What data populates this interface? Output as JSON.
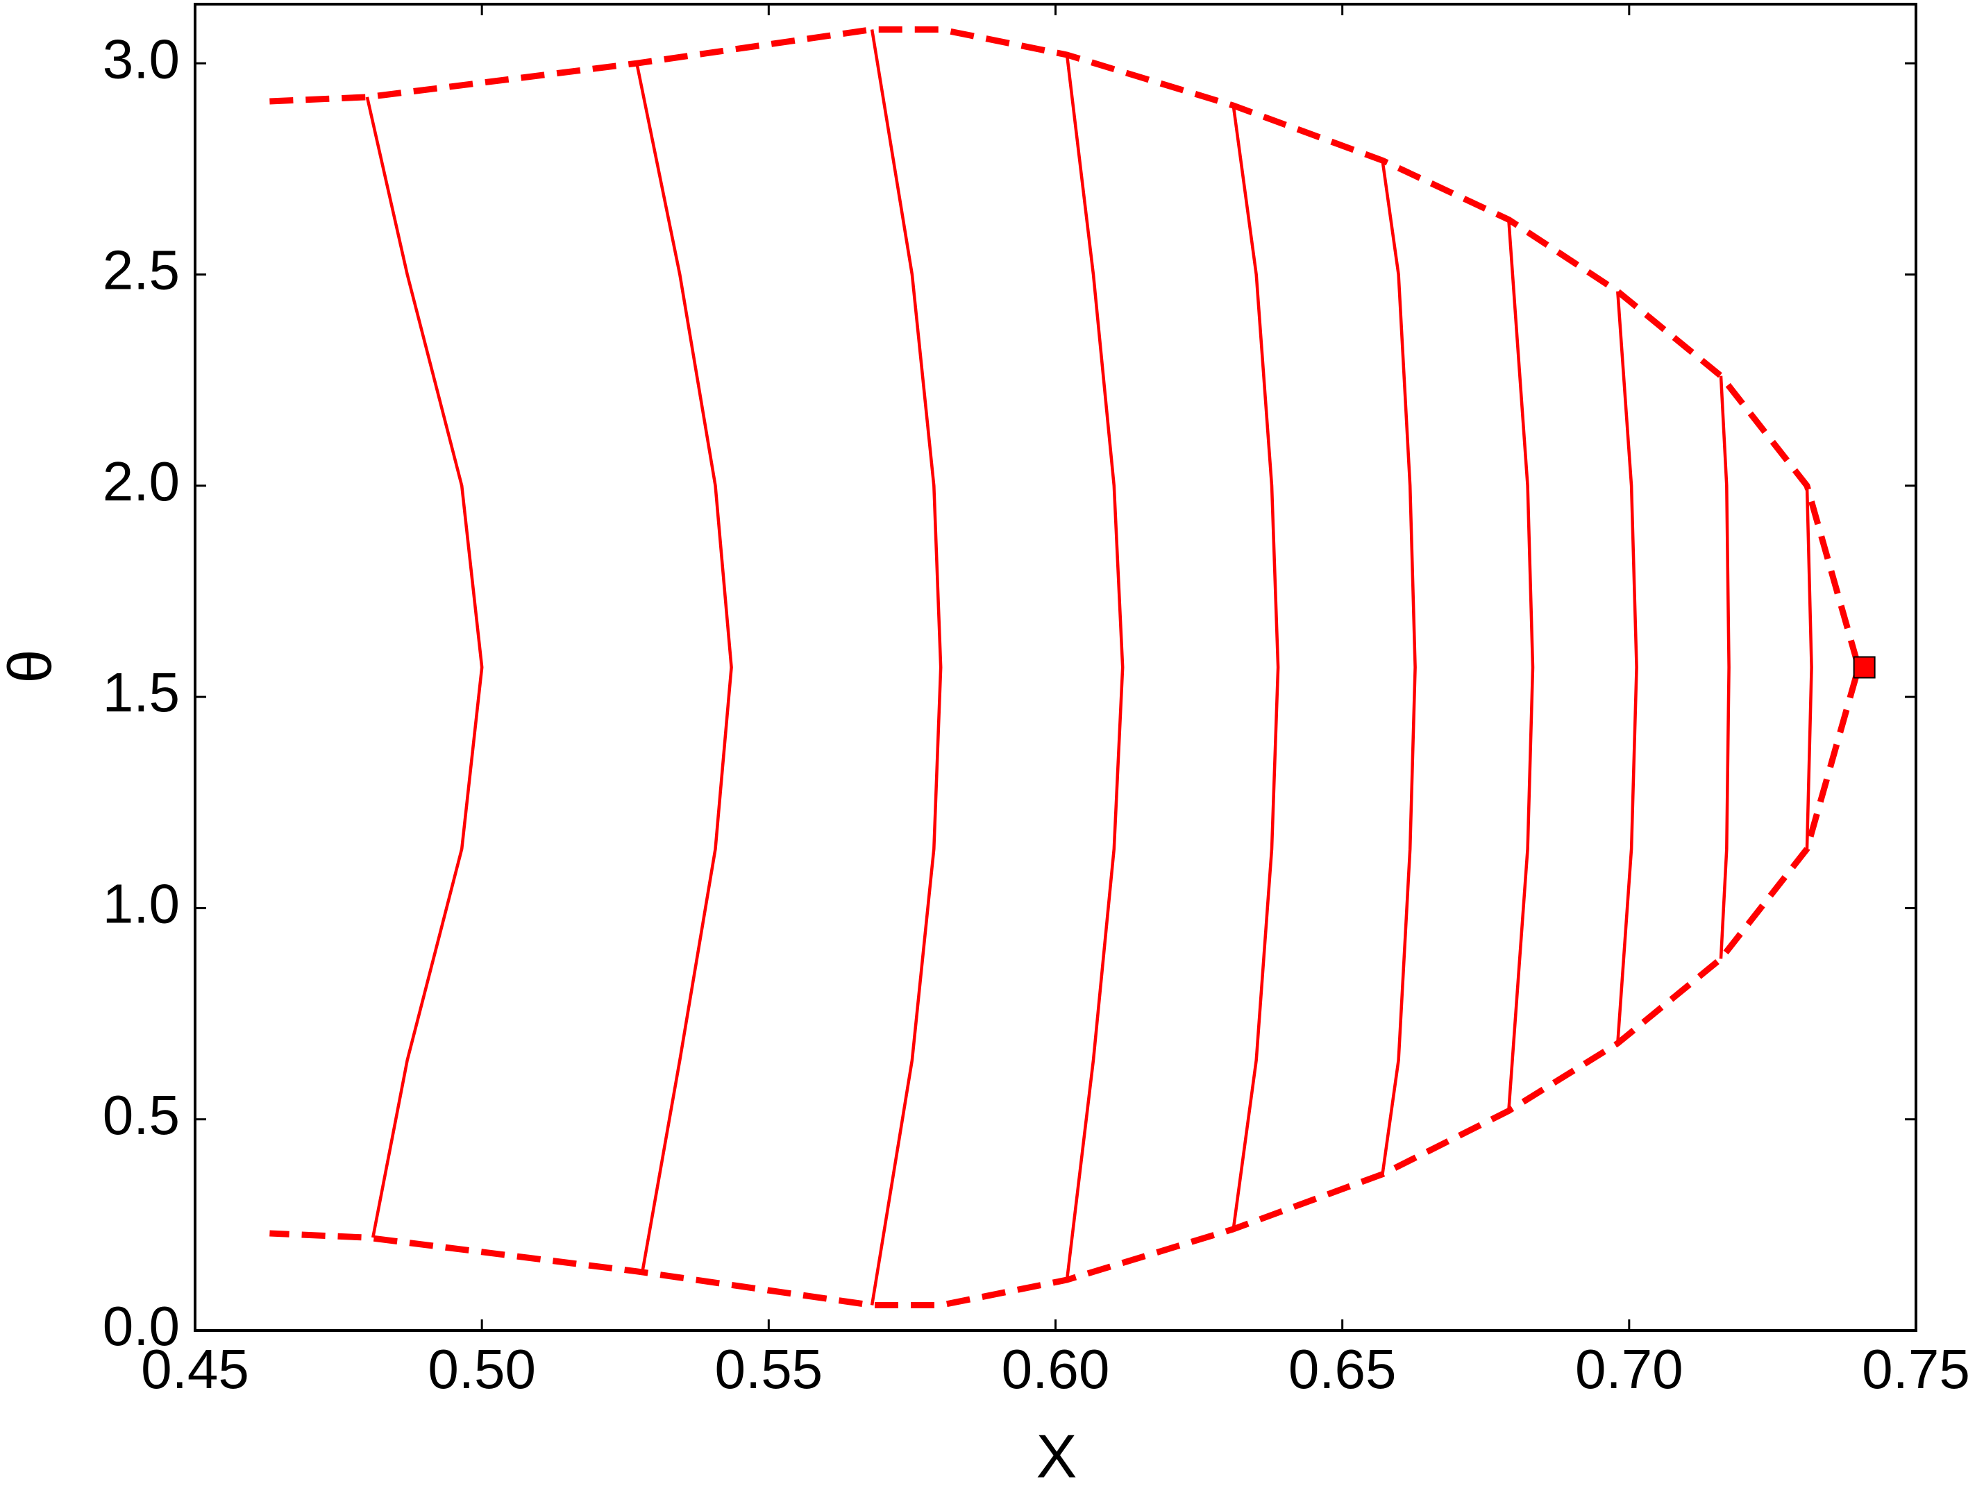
{
  "chart_data": {
    "type": "line",
    "xlabel": "X",
    "ylabel": "θ",
    "xlim": [
      0.45,
      0.75
    ],
    "ylim": [
      0,
      3.14
    ],
    "xticks": [
      {
        "value": 0.45,
        "label": "0.45"
      },
      {
        "value": 0.5,
        "label": "0.50"
      },
      {
        "value": 0.55,
        "label": "0.55"
      },
      {
        "value": 0.6,
        "label": "0.60"
      },
      {
        "value": 0.65,
        "label": "0.65"
      },
      {
        "value": 0.7,
        "label": "0.70"
      },
      {
        "value": 0.75,
        "label": "0.75"
      }
    ],
    "yticks": [
      {
        "value": 0,
        "label": "0.0"
      },
      {
        "value": 0.5,
        "label": "0.5"
      },
      {
        "value": 1,
        "label": "1.0"
      },
      {
        "value": 1.5,
        "label": "1.5"
      },
      {
        "value": 2,
        "label": "2.0"
      },
      {
        "value": 2.5,
        "label": "2.5"
      },
      {
        "value": 3,
        "label": "3.0"
      }
    ],
    "grid": false,
    "series": [
      {
        "color": "#ff0000",
        "dashed": true,
        "x": [
          0.463,
          0.48,
          0.527,
          0.568,
          0.58,
          0.602,
          0.631,
          0.657,
          0.679,
          0.698,
          0.716,
          0.731,
          0.74,
          0.731,
          0.716,
          0.698,
          0.679,
          0.657,
          0.631,
          0.602,
          0.58,
          0.568,
          0.527,
          0.48,
          0.463
        ],
        "values": [
          2.91,
          2.92,
          3.0,
          3.08,
          3.08,
          3.02,
          2.9,
          2.77,
          2.63,
          2.46,
          2.26,
          2.0,
          1.57,
          1.14,
          0.88,
          0.68,
          0.52,
          0.37,
          0.24,
          0.12,
          0.06,
          0.06,
          0.14,
          0.22,
          0.23
        ]
      },
      {
        "color": "#ff0000",
        "x": [
          0.48,
          0.487,
          0.4965,
          0.5,
          0.4965,
          0.487,
          0.481
        ],
        "values": [
          2.92,
          2.5,
          2.0,
          1.57,
          1.14,
          0.64,
          0.22
        ]
      },
      {
        "color": "#ff0000",
        "x": [
          0.527,
          0.5345,
          0.5407,
          0.5435,
          0.5407,
          0.5345,
          0.528
        ],
        "values": [
          3.0,
          2.5,
          2.0,
          1.57,
          1.14,
          0.64,
          0.14
        ]
      },
      {
        "color": "#ff0000",
        "x": [
          0.568,
          0.575,
          0.5788,
          0.58,
          0.5788,
          0.575,
          0.568
        ],
        "values": [
          3.08,
          2.5,
          2.0,
          1.57,
          1.14,
          0.64,
          0.06
        ]
      },
      {
        "color": "#ff0000",
        "x": [
          0.602,
          0.6066,
          0.6102,
          0.6117,
          0.6102,
          0.6066,
          0.602
        ],
        "values": [
          3.02,
          2.5,
          2.0,
          1.57,
          1.14,
          0.64,
          0.12
        ]
      },
      {
        "color": "#ff0000",
        "x": [
          0.631,
          0.635,
          0.6377,
          0.6388,
          0.6377,
          0.635,
          0.631
        ],
        "values": [
          2.9,
          2.5,
          2.0,
          1.57,
          1.14,
          0.64,
          0.24
        ]
      },
      {
        "color": "#ff0000",
        "x": [
          0.657,
          0.6598,
          0.6618,
          0.6627,
          0.6618,
          0.6598,
          0.657
        ],
        "values": [
          2.77,
          2.5,
          2.0,
          1.57,
          1.14,
          0.64,
          0.37
        ]
      },
      {
        "color": "#ff0000",
        "x": [
          0.679,
          0.6823,
          0.6832,
          0.6823,
          0.679
        ],
        "values": [
          2.63,
          2.0,
          1.57,
          1.14,
          0.52
        ]
      },
      {
        "color": "#ff0000",
        "x": [
          0.698,
          0.7004,
          0.7013,
          0.7004,
          0.698
        ],
        "values": [
          2.46,
          2.0,
          1.57,
          1.14,
          0.68
        ]
      },
      {
        "color": "#ff0000",
        "x": [
          0.716,
          0.717,
          0.7174,
          0.717,
          0.716
        ],
        "values": [
          2.26,
          2.0,
          1.57,
          1.14,
          0.88
        ]
      },
      {
        "color": "#ff0000",
        "x": [
          0.731,
          0.7318,
          0.731
        ],
        "values": [
          2.0,
          1.57,
          1.14
        ]
      },
      {
        "color": "#ff0000",
        "marker": "square",
        "x": [
          0.741
        ],
        "values": [
          1.57
        ]
      }
    ]
  }
}
